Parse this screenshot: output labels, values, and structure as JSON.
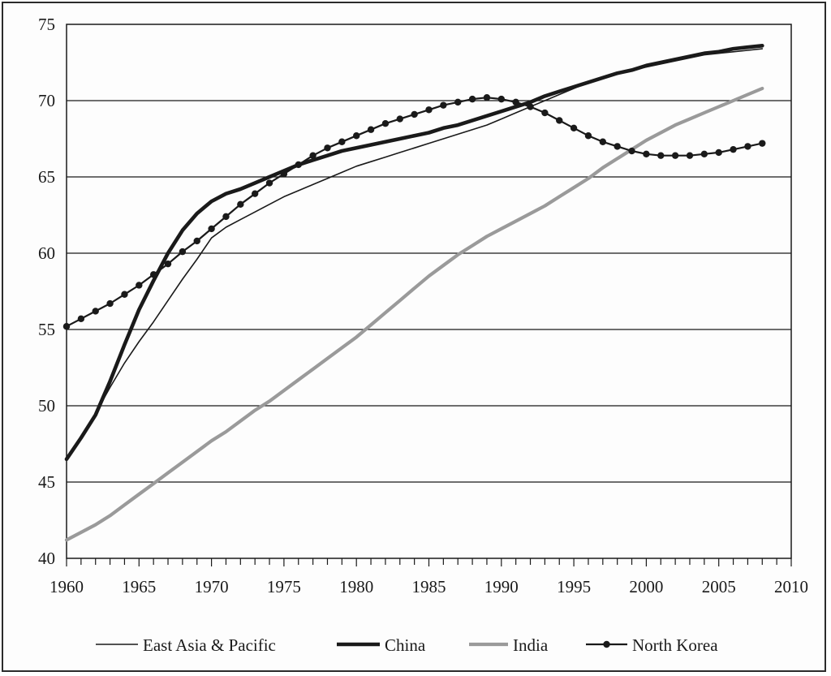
{
  "chart_data": {
    "type": "line",
    "title": "",
    "xlabel": "",
    "ylabel": "",
    "xlim": [
      1960,
      2010
    ],
    "ylim": [
      40,
      75
    ],
    "x_ticks": [
      1960,
      1965,
      1970,
      1975,
      1980,
      1985,
      1990,
      1995,
      2000,
      2005,
      2010
    ],
    "y_ticks": [
      40,
      45,
      50,
      55,
      60,
      65,
      70,
      75
    ],
    "grid": "horizontal",
    "legend_position": "bottom",
    "x": [
      1960,
      1961,
      1962,
      1963,
      1964,
      1965,
      1966,
      1967,
      1968,
      1969,
      1970,
      1971,
      1972,
      1973,
      1974,
      1975,
      1976,
      1977,
      1978,
      1979,
      1980,
      1981,
      1982,
      1983,
      1984,
      1985,
      1986,
      1987,
      1988,
      1989,
      1990,
      1991,
      1992,
      1993,
      1994,
      1995,
      1996,
      1997,
      1998,
      1999,
      2000,
      2001,
      2002,
      2003,
      2004,
      2005,
      2006,
      2007,
      2008
    ],
    "series": [
      {
        "name": "East Asia & Pacific",
        "color": "#1a1a1a",
        "style": "thin",
        "values": [
          46.6,
          48.0,
          49.5,
          51.2,
          52.8,
          54.2,
          55.5,
          56.9,
          58.3,
          59.6,
          61.0,
          61.7,
          62.2,
          62.7,
          63.2,
          63.7,
          64.1,
          64.5,
          64.9,
          65.3,
          65.7,
          66.0,
          66.3,
          66.6,
          66.9,
          67.2,
          67.5,
          67.8,
          68.1,
          68.4,
          68.8,
          69.2,
          69.6,
          70.0,
          70.4,
          70.8,
          71.2,
          71.5,
          71.8,
          72.0,
          72.2,
          72.4,
          72.6,
          72.8,
          73.0,
          73.1,
          73.2,
          73.3,
          73.4
        ]
      },
      {
        "name": "China",
        "color": "#1a1a1a",
        "style": "thick",
        "values": [
          46.5,
          47.9,
          49.4,
          51.6,
          54.0,
          56.3,
          58.2,
          60.0,
          61.5,
          62.6,
          63.4,
          63.9,
          64.2,
          64.6,
          65.0,
          65.4,
          65.8,
          66.1,
          66.4,
          66.7,
          66.9,
          67.1,
          67.3,
          67.5,
          67.7,
          67.9,
          68.2,
          68.4,
          68.7,
          69.0,
          69.3,
          69.6,
          69.9,
          70.3,
          70.6,
          70.9,
          71.2,
          71.5,
          71.8,
          72.0,
          72.3,
          72.5,
          72.7,
          72.9,
          73.1,
          73.2,
          73.4,
          73.5,
          73.6
        ]
      },
      {
        "name": "India",
        "color": "#9a9a9a",
        "style": "thick",
        "values": [
          41.2,
          41.7,
          42.2,
          42.8,
          43.5,
          44.2,
          44.9,
          45.6,
          46.3,
          47.0,
          47.7,
          48.3,
          49.0,
          49.7,
          50.3,
          51.0,
          51.7,
          52.4,
          53.1,
          53.8,
          54.5,
          55.3,
          56.1,
          56.9,
          57.7,
          58.5,
          59.2,
          59.9,
          60.5,
          61.1,
          61.6,
          62.1,
          62.6,
          63.1,
          63.7,
          64.3,
          64.9,
          65.6,
          66.2,
          66.8,
          67.4,
          67.9,
          68.4,
          68.8,
          69.2,
          69.6,
          70.0,
          70.4,
          70.8
        ]
      },
      {
        "name": "North Korea",
        "color": "#1a1a1a",
        "style": "dotted-markers",
        "values": [
          55.2,
          55.7,
          56.2,
          56.7,
          57.3,
          57.9,
          58.6,
          59.3,
          60.1,
          60.8,
          61.6,
          62.4,
          63.2,
          63.9,
          64.6,
          65.2,
          65.8,
          66.4,
          66.9,
          67.3,
          67.7,
          68.1,
          68.5,
          68.8,
          69.1,
          69.4,
          69.7,
          69.9,
          70.1,
          70.2,
          70.1,
          69.9,
          69.6,
          69.2,
          68.7,
          68.2,
          67.7,
          67.3,
          67.0,
          66.7,
          66.5,
          66.4,
          66.4,
          66.4,
          66.5,
          66.6,
          66.8,
          67.0,
          67.2
        ]
      }
    ]
  }
}
